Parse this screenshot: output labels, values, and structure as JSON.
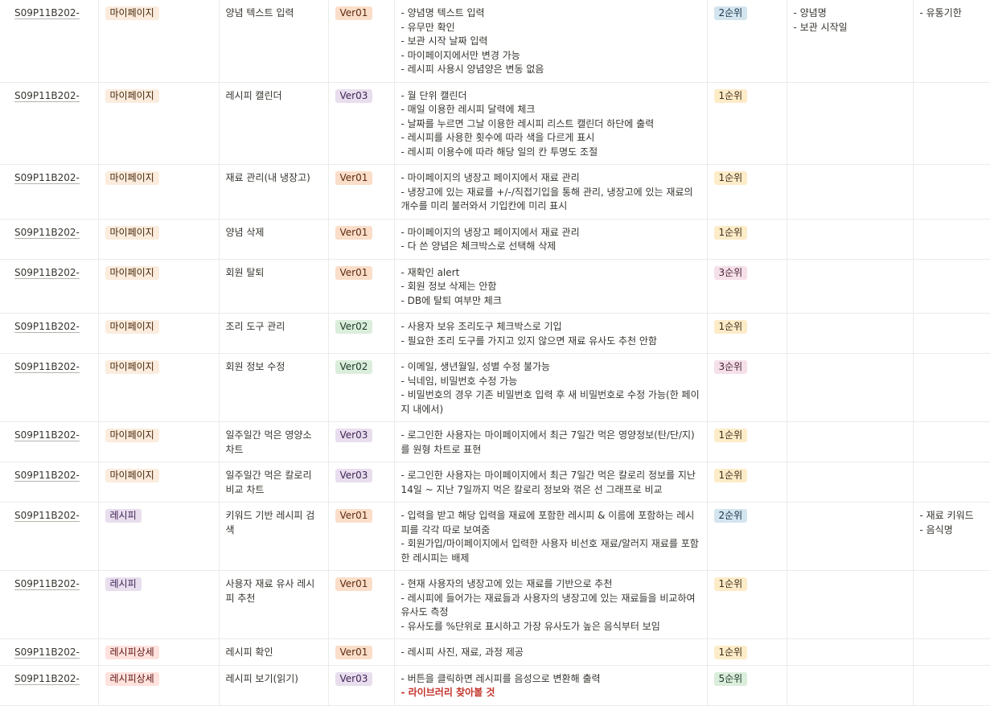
{
  "colors": {
    "grid_line": "#ebebea",
    "text": "#37352f",
    "bold_note": "#c4332b"
  },
  "rows": [
    {
      "id": "S09P11B202-",
      "category": "마이페이지",
      "category_style": "mypage",
      "feature": "양념 텍스트 입력",
      "version": "Ver01",
      "version_style": "ver01",
      "description": [
        "- 양념명 텍스트 입력",
        "- 유무만 확인",
        "- 보관 시작 날짜 입력",
        "- 마이페이지에서만 변경 가능",
        "- 레시피 사용시 양념양은 변동 없음"
      ],
      "priority": "2순위",
      "priority_style": "2",
      "col7": [
        "- 양념명",
        "- 보관 시작일"
      ],
      "col8": [
        "- 유통기한"
      ]
    },
    {
      "id": "S09P11B202-",
      "category": "마이페이지",
      "category_style": "mypage",
      "feature": "레시피 캘린더",
      "version": "Ver03",
      "version_style": "ver03",
      "description": [
        "- 월 단위 캘린더",
        "- 매일 이용한 레시피 달력에 체크",
        "- 날짜를 누르면 그날 이용한 레시피 리스트 캘린더 하단에 출력",
        "- 레시피를 사용한 횟수에 따라 색을 다르게 표시",
        "- 레시피 이용수에 따라 해당 일의 칸 투명도 조절"
      ],
      "priority": "1순위",
      "priority_style": "1",
      "col7": [],
      "col8": []
    },
    {
      "id": "S09P11B202-",
      "category": "마이페이지",
      "category_style": "mypage",
      "feature": "재료 관리(내 냉장고)",
      "version": "Ver01",
      "version_style": "ver01",
      "description": [
        "- 마이페이지의 냉장고 페이지에서 재료 관리",
        "- 냉장고에 있는 재료를 +/-/직접기입을 통해 관리, 냉장고에 있는 재료의 개수를 미리 불러와서 기입칸에 미리 표시"
      ],
      "priority": "1순위",
      "priority_style": "1",
      "col7": [],
      "col8": []
    },
    {
      "id": "S09P11B202-",
      "category": "마이페이지",
      "category_style": "mypage",
      "feature": "양념 삭제",
      "version": "Ver01",
      "version_style": "ver01",
      "description": [
        "- 마이페이지의 냉장고 페이지에서 재료 관리",
        "- 다 쓴 양념은 체크박스로 선택해 삭제"
      ],
      "priority": "1순위",
      "priority_style": "1",
      "col7": [],
      "col8": []
    },
    {
      "id": "S09P11B202-",
      "category": "마이페이지",
      "category_style": "mypage",
      "feature": "회원 탈퇴",
      "version": "Ver01",
      "version_style": "ver01",
      "description": [
        "- 재확인 alert",
        "- 회원 정보 삭제는 안함",
        "- DB에 탈퇴 여부만 체크"
      ],
      "priority": "3순위",
      "priority_style": "3",
      "col7": [],
      "col8": []
    },
    {
      "id": "S09P11B202-",
      "category": "마이페이지",
      "category_style": "mypage",
      "feature": "조리 도구 관리",
      "version": "Ver02",
      "version_style": "ver02",
      "description": [
        "- 사용자 보유 조리도구 체크박스로 기입",
        "- 필요한 조리 도구를 가지고 있지 않으면 재료 유사도 추천 안함"
      ],
      "priority": "1순위",
      "priority_style": "1",
      "col7": [],
      "col8": []
    },
    {
      "id": "S09P11B202-",
      "category": "마이페이지",
      "category_style": "mypage",
      "feature": "회원 정보 수정",
      "version": "Ver02",
      "version_style": "ver02",
      "description": [
        "- 이메일, 생년월일, 성별 수정 불가능",
        "- 닉네임, 비밀번호 수정 가능",
        "- 비밀번호의 경우 기존 비밀번호 입력 후 새 비밀번호로 수정 가능(한 페이지 내에서)"
      ],
      "priority": "3순위",
      "priority_style": "3",
      "col7": [],
      "col8": []
    },
    {
      "id": "S09P11B202-",
      "category": "마이페이지",
      "category_style": "mypage",
      "feature": "일주일간 먹은 영양소 차트",
      "version": "Ver03",
      "version_style": "ver03",
      "description": [
        "- 로그인한 사용자는 마이페이지에서 최근 7일간 먹은 영양정보(탄/단/지)를 원형 차트로 표현"
      ],
      "priority": "1순위",
      "priority_style": "1",
      "col7": [],
      "col8": []
    },
    {
      "id": "S09P11B202-",
      "category": "마이페이지",
      "category_style": "mypage",
      "feature": "일주일간 먹은 칼로리 비교 차트",
      "version": "Ver03",
      "version_style": "ver03",
      "description": [
        "- 로그인한 사용자는 마이페이지에서 최근 7일간 먹은 칼로리 정보를 지난 14일 ~ 지난 7일까지 먹은 칼로리 정보와 꺾은 선 그래프로 비교"
      ],
      "priority": "1순위",
      "priority_style": "1",
      "col7": [],
      "col8": []
    },
    {
      "id": "S09P11B202-",
      "category": "레시피",
      "category_style": "recipe",
      "feature": "키워드 기반 레시피 검색",
      "version": "Ver01",
      "version_style": "ver01",
      "description": [
        "- 입력을 받고 해당 입력을 재료에 포함한 레시피 & 이름에 포함하는 레시피를 각각 따로 보여줌",
        "- 회원가입/마이페이지에서 입력한 사용자 비선호 재료/알러지 재료를 포함한 레시피는 배제"
      ],
      "priority": "2순위",
      "priority_style": "2",
      "col7": [],
      "col8": [
        "- 재료 키워드",
        "- 음식명"
      ]
    },
    {
      "id": "S09P11B202-",
      "category": "레시피",
      "category_style": "recipe",
      "feature": "사용자 재료 유사 레시피 추천",
      "version": "Ver01",
      "version_style": "ver01",
      "description": [
        "- 현재 사용자의 냉장고에 있는 재료를 기반으로 추천",
        "- 레시피에 들어가는 재료들과 사용자의 냉장고에 있는 재료들을 비교하여 유사도 측정",
        "- 유사도를 %단위로 표시하고 가장 유사도가 높은 음식부터 보임"
      ],
      "priority": "1순위",
      "priority_style": "1",
      "col7": [],
      "col8": []
    },
    {
      "id": "S09P11B202-",
      "category": "레시피상세",
      "category_style": "recipedetail",
      "feature": "레시피 확인",
      "version": "Ver01",
      "version_style": "ver01",
      "description": [
        "- 레시피 사진, 재료, 과정 제공"
      ],
      "priority": "1순위",
      "priority_style": "1",
      "col7": [],
      "col8": []
    },
    {
      "id": "S09P11B202-",
      "category": "레시피상세",
      "category_style": "recipedetail",
      "feature": "레시피 보기(읽기)",
      "version": "Ver03",
      "version_style": "ver03",
      "description": [
        "- 버튼을 클릭하면 레시피를 음성으로 변환해 출력"
      ],
      "description_bold": "- 라이브러리 찾아볼 것",
      "priority": "5순위",
      "priority_style": "5",
      "col7": [],
      "col8": []
    }
  ]
}
